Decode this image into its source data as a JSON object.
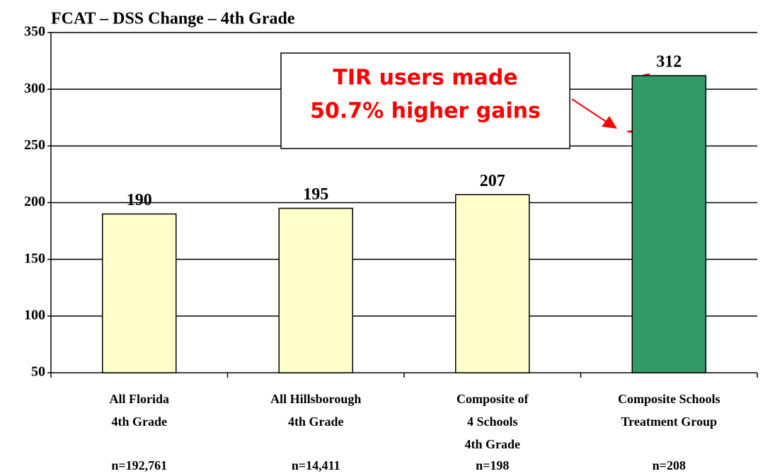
{
  "chart_data": {
    "type": "bar",
    "title": "FCAT – DSS Change – 4th Grade",
    "categories": [
      [
        "All Florida",
        "4th Grade"
      ],
      [
        "All Hillsborough",
        "4th Grade"
      ],
      [
        "Composite of",
        "4 Schools",
        "4th Grade"
      ],
      [
        "Composite Schools",
        "Treatment Group"
      ]
    ],
    "n_labels": [
      "n=192,761",
      "n=14,411",
      "n=198",
      "n=208"
    ],
    "values": [
      190,
      195,
      207,
      312
    ],
    "colors": [
      "#ffffcc",
      "#ffffcc",
      "#ffffcc",
      "#339966"
    ],
    "annotation": [
      "TIR users made",
      "50.7% higher gains"
    ],
    "ylim": [
      50,
      350
    ],
    "yticks": [
      50,
      100,
      150,
      200,
      250,
      300,
      350
    ],
    "grid": true
  }
}
